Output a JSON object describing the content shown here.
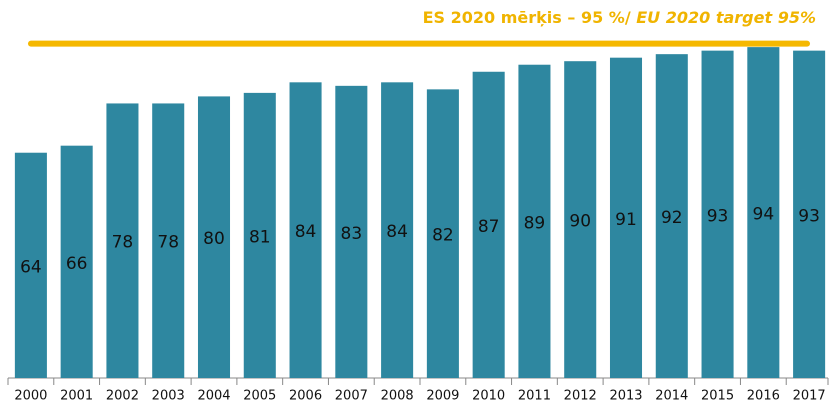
{
  "chart_data": {
    "type": "bar",
    "title": "ES 2020 mērķis – 95 %/",
    "subtitle": "EU 2020 target 95%",
    "categories": [
      "2000",
      "2001",
      "2002",
      "2003",
      "2004",
      "2005",
      "2006",
      "2007",
      "2008",
      "2009",
      "2010",
      "2011",
      "2012",
      "2013",
      "2014",
      "2015",
      "2016",
      "2017"
    ],
    "values": [
      64,
      66,
      78,
      78,
      80,
      81,
      84,
      83,
      84,
      82,
      87,
      89,
      90,
      91,
      92,
      93,
      94,
      93
    ],
    "color": "#2e87a0",
    "ylim": [
      0,
      100
    ],
    "target_line": {
      "value": 95,
      "color": "#f5b800"
    }
  }
}
